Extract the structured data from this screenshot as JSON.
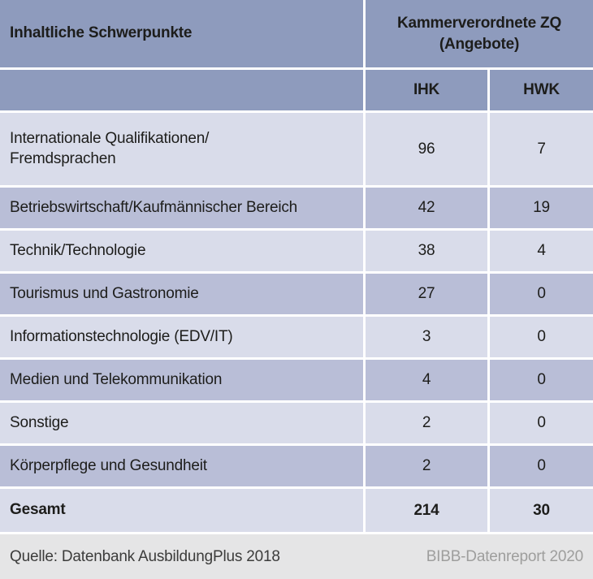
{
  "table": {
    "header": {
      "col1": "Inhaltliche Schwerpunkte",
      "group": "Kammerverordnete ZQ\n(Angebote)",
      "sub_ihk": "IHK",
      "sub_hwk": "HWK"
    },
    "rows": [
      {
        "label": "Internationale Qualifikationen/\nFremdsprachen",
        "ihk": "96",
        "hwk": "7"
      },
      {
        "label": "Betriebswirtschaft/Kaufmännischer Bereich",
        "ihk": "42",
        "hwk": "19"
      },
      {
        "label": "Technik/Technologie",
        "ihk": "38",
        "hwk": "4"
      },
      {
        "label": "Tourismus und Gastronomie",
        "ihk": "27",
        "hwk": "0"
      },
      {
        "label": "Informationstechnologie (EDV/IT)",
        "ihk": "3",
        "hwk": "0"
      },
      {
        "label": "Medien und Telekommunikation",
        "ihk": "4",
        "hwk": "0"
      },
      {
        "label": "Sonstige",
        "ihk": "2",
        "hwk": "0"
      },
      {
        "label": "Körperpflege und Gesundheit",
        "ihk": "2",
        "hwk": "0"
      }
    ],
    "total": {
      "label": "Gesamt",
      "ihk": "214",
      "hwk": "30"
    },
    "footer": {
      "source": "Quelle: Datenbank AusbildungPlus 2018",
      "report": "BIBB-Datenreport 2020"
    }
  },
  "colors": {
    "header_bg": "#8e9bbd",
    "row_light_bg": "#d9dcea",
    "row_dark_bg": "#b9bed7",
    "footer_bg": "#e5e5e6",
    "divider": "#ffffff",
    "text": "#1d1d1b",
    "footer_report_text": "#9e9e9d"
  }
}
